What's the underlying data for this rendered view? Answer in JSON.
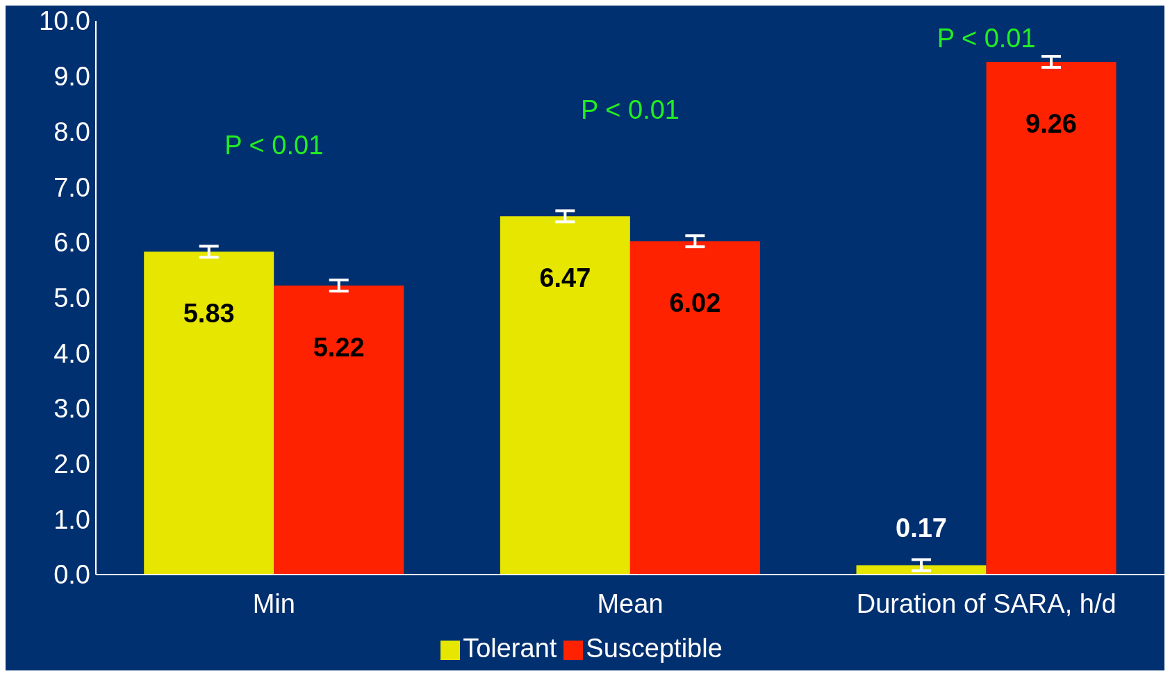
{
  "chart_data": {
    "type": "bar",
    "categories": [
      "Min",
      "Mean",
      "Duration of SARA, h/d"
    ],
    "series": [
      {
        "name": "Tolerant",
        "color": "#e6e600",
        "values": [
          5.83,
          6.47,
          0.17
        ],
        "errors": [
          0.1,
          0.1,
          0.1
        ]
      },
      {
        "name": "Susceptible",
        "color": "#ff2200",
        "values": [
          5.22,
          6.02,
          9.26
        ],
        "errors": [
          0.1,
          0.1,
          0.1
        ]
      }
    ],
    "ylim": [
      0,
      10
    ],
    "yticks": [
      {
        "value": 0,
        "label": "0.0"
      },
      {
        "value": 1,
        "label": "1.0"
      },
      {
        "value": 2,
        "label": "2.0"
      },
      {
        "value": 3,
        "label": "3.0"
      },
      {
        "value": 4,
        "label": "4.0"
      },
      {
        "value": 5,
        "label": "5.0"
      },
      {
        "value": 6,
        "label": "6.0"
      },
      {
        "value": 7,
        "label": "7.0"
      },
      {
        "value": 8,
        "label": "8.0"
      },
      {
        "value": 9,
        "label": "9.0"
      },
      {
        "value": 10,
        "label": "10.0"
      }
    ],
    "annotations": [
      "P < 0.01",
      "P < 0.01",
      "P < 0.01"
    ],
    "data_labels": true,
    "grid": false,
    "legend": "bottom"
  }
}
